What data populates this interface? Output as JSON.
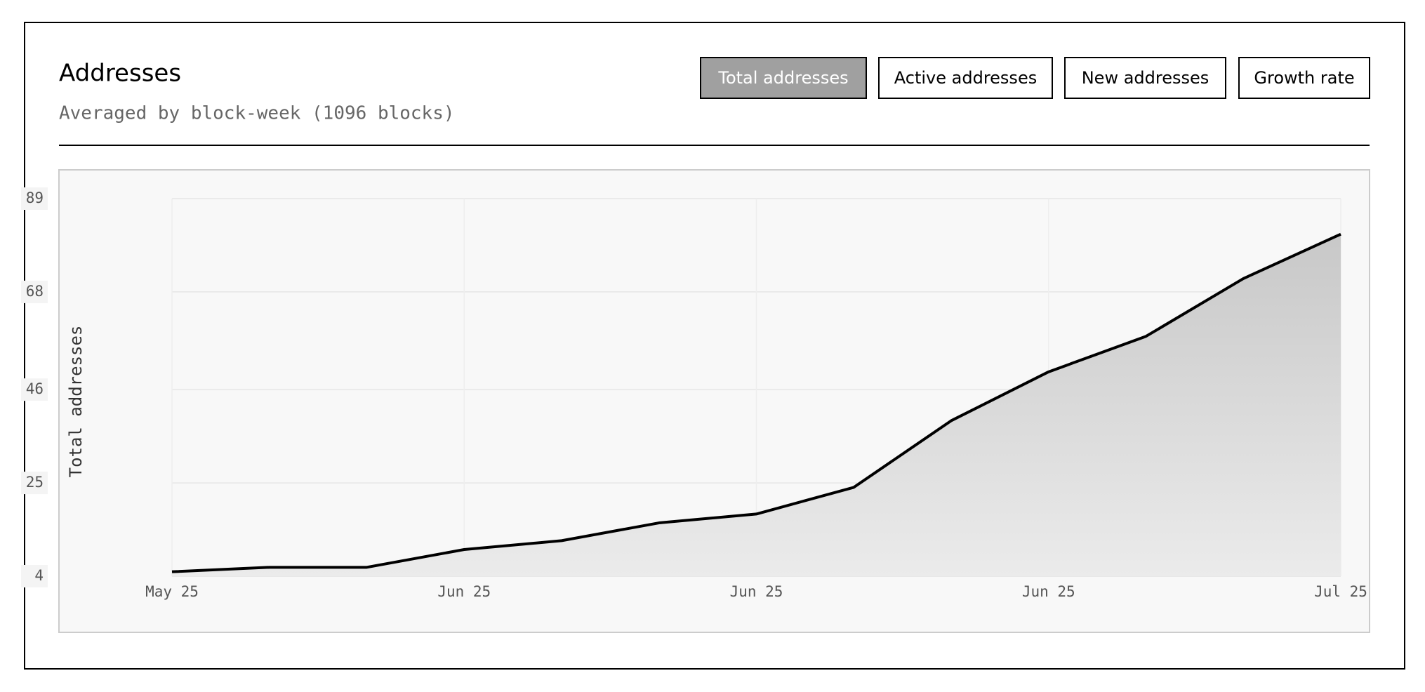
{
  "buttons": [
    "Total addresses",
    "Active addresses",
    "New addresses",
    "Growth rate"
  ],
  "active_button": 0,
  "chart_data": {
    "type": "area",
    "title": "Addresses",
    "subtitle": "Averaged by block-week (1096 blocks)",
    "y_label": "Total addresses",
    "categories": [
      "May 25",
      null,
      null,
      "Jun 25",
      null,
      null,
      "Jun 25",
      null,
      null,
      "Jun 25",
      null,
      null,
      "Jul 25"
    ],
    "values": [
      5,
      6,
      6,
      10,
      12,
      16,
      18,
      24,
      39,
      50,
      58,
      71,
      81
    ],
    "color": "#000000",
    "ylim": [
      4,
      89
    ],
    "yticks": [
      4,
      25,
      46,
      68,
      89
    ],
    "grid": true
  }
}
